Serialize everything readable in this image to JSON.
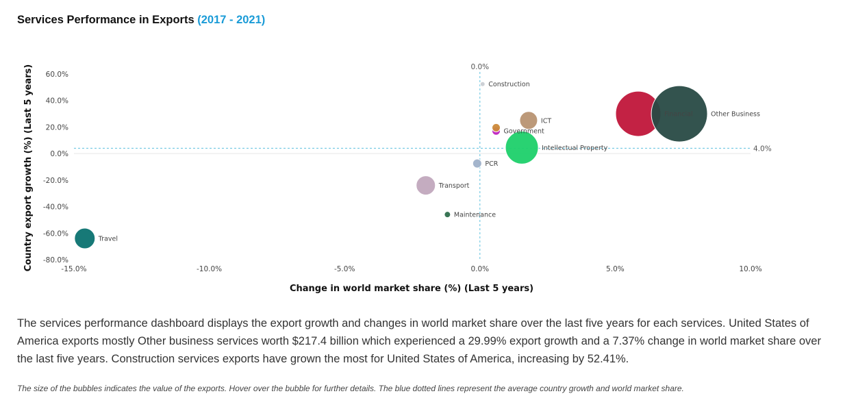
{
  "page": {
    "title": "Services Performance in Exports",
    "title_range": "(2017 - 2021)",
    "summary": "The services performance dashboard displays the export growth and changes in world market share over the last five years for each services. United States of America exports mostly Other business services worth $217.4 billion which experienced a 29.99% export growth and a 7.37% change in world market share over the last five years. Construction services exports have grown the most for United States of America, increasing by 52.41%.",
    "note": "The size of the bubbles indicates the value of the exports. Hover over the bubble for further details. The blue dotted lines represent the average country growth and world market share."
  },
  "chart_data": {
    "type": "scatter",
    "title": "",
    "xlabel": "Change in world market share (%) (Last 5 years)",
    "ylabel": "Country export growth (%) (Last 5 years)",
    "xlim": [
      -15,
      10
    ],
    "ylim": [
      -80,
      60
    ],
    "x_ticks": [
      -15,
      -10,
      -5,
      0,
      5,
      10
    ],
    "x_tick_labels": [
      "-15.0%",
      "-10.0%",
      "-5.0%",
      "0.0%",
      "5.0%",
      "10.0%"
    ],
    "y_ticks": [
      60,
      40,
      20,
      0,
      -20,
      -40,
      -60,
      -80
    ],
    "y_tick_labels": [
      "60.0%",
      "40.0%",
      "20.0%",
      "0.0%",
      "-20.0%",
      "-40.0%",
      "-60.0%",
      "-80.0%"
    ],
    "avg_lines": {
      "x": 0.0,
      "x_label": "0.0%",
      "y": 4.0,
      "y_label": "4.0%",
      "color": "#5bc0de"
    },
    "points": [
      {
        "name": "Construction",
        "x": 0.1,
        "y": 52.41,
        "r": 3.5,
        "color": "#c9ced3"
      },
      {
        "name": "ICT",
        "x": 1.8,
        "y": 25,
        "r": 13,
        "color": "#b89472"
      },
      {
        "name": "Government",
        "x": 0.6,
        "y": 17,
        "r": 6,
        "color": "#c025c0"
      },
      {
        "name": "",
        "x": 0.6,
        "y": 19.5,
        "r": 6,
        "color": "#cc8a3a"
      },
      {
        "name": "Intellectual Property",
        "x": 1.55,
        "y": 4.5,
        "r": 24,
        "color": "#1ed06a"
      },
      {
        "name": "PCR",
        "x": -0.1,
        "y": -7.5,
        "r": 6.5,
        "color": "#9fb1c9"
      },
      {
        "name": "Transport",
        "x": -2.0,
        "y": -24,
        "r": 14,
        "color": "#c1a8bd"
      },
      {
        "name": "Maintenance",
        "x": -1.2,
        "y": -46,
        "r": 4.5,
        "color": "#2e6e4c"
      },
      {
        "name": "Travel",
        "x": -14.6,
        "y": -64,
        "r": 15,
        "color": "#0b7270"
      },
      {
        "name": "Financial",
        "x": 5.85,
        "y": 30,
        "r": 33,
        "color": "#c0163a"
      },
      {
        "name": "Other Business",
        "x": 7.37,
        "y": 29.99,
        "r": 41,
        "color": "#284a45"
      }
    ]
  }
}
